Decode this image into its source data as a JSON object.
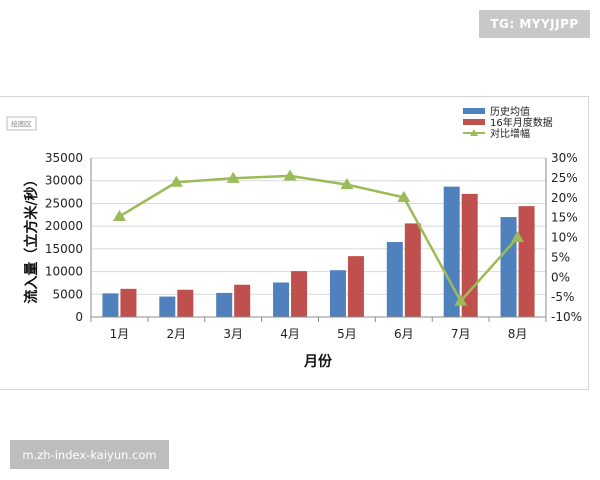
{
  "watermark_top": "TG: MYYJJPP",
  "watermark_bottom": "m.zh-index-kaiyun.com",
  "plot_area_tag": "绘图区",
  "chart_data": {
    "type": "bar",
    "categories": [
      "1月",
      "2月",
      "3月",
      "4月",
      "5月",
      "6月",
      "7月",
      "8月"
    ],
    "xlabel": "月份",
    "ylabel": "流入量（立方米/秒）",
    "ylim": [
      0,
      35000
    ],
    "y_ticks": [
      "0",
      "5000",
      "10000",
      "15000",
      "20000",
      "25000",
      "30000",
      "35000"
    ],
    "y2lim": [
      -10,
      30
    ],
    "y2_ticks": [
      "-10%",
      "-5%",
      "0%",
      "5%",
      "10%",
      "15%",
      "20%",
      "25%",
      "30%"
    ],
    "series": [
      {
        "name": "历史均值",
        "type": "bar",
        "color": "#4f81bd",
        "values": [
          5200,
          4500,
          5300,
          7600,
          10300,
          16500,
          28700,
          22000
        ]
      },
      {
        "name": "16年月度数据",
        "type": "bar",
        "color": "#c0504d",
        "values": [
          6200,
          6000,
          7100,
          10100,
          13400,
          20600,
          27100,
          24400
        ]
      },
      {
        "name": "对比增幅",
        "type": "line",
        "axis": "right",
        "color": "#9bbb59",
        "values": [
          15.3,
          23.9,
          24.9,
          25.5,
          23.3,
          20.1,
          -6.0,
          10.0
        ]
      }
    ],
    "legend_position": "top-right",
    "grid": true
  }
}
